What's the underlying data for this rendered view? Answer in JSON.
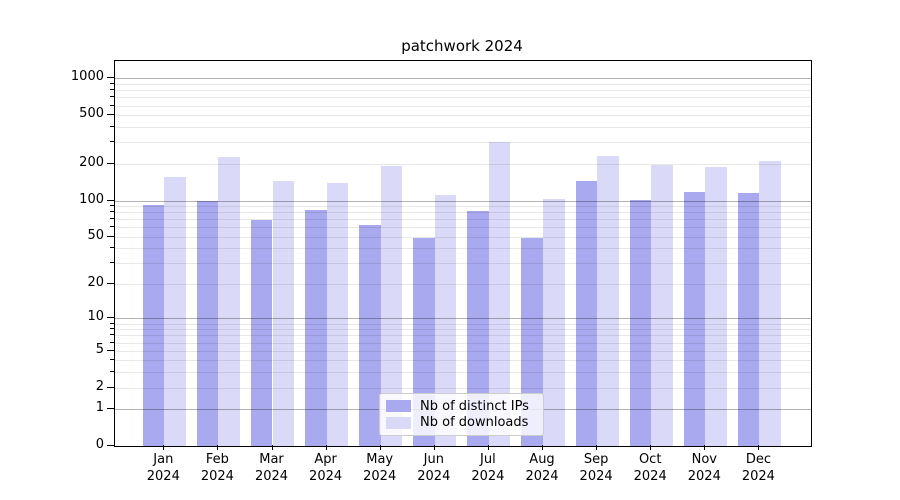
{
  "title": "patchwork 2024",
  "chart_data": {
    "type": "bar",
    "title": "patchwork 2024",
    "categories": [
      "Jan 2024",
      "Feb 2024",
      "Mar 2024",
      "Apr 2024",
      "May 2024",
      "Jun 2024",
      "Jul 2024",
      "Aug 2024",
      "Sep 2024",
      "Oct 2024",
      "Nov 2024",
      "Dec 2024"
    ],
    "series": [
      {
        "name": "Nb of distinct IPs",
        "color": "#a9a9ef",
        "values": [
          92,
          100,
          69,
          84,
          63,
          49,
          82,
          49,
          146,
          101,
          117,
          115
        ]
      },
      {
        "name": "Nb of downloads",
        "color": "#dadaf8",
        "values": [
          155,
          226,
          145,
          139,
          194,
          110,
          300,
          103,
          234,
          195,
          190,
          210
        ]
      }
    ],
    "yscale": "log1p",
    "ylim": [
      0,
      1350
    ],
    "ytick_labels": [
      0,
      1,
      2,
      5,
      10,
      20,
      50,
      100,
      200,
      500,
      1000
    ],
    "major_grid_values": [
      1,
      10,
      100,
      1000
    ],
    "minor_grid_values": [
      2,
      3,
      4,
      5,
      6,
      7,
      8,
      9,
      20,
      30,
      40,
      50,
      60,
      70,
      80,
      90,
      200,
      300,
      400,
      500,
      600,
      700,
      800,
      900
    ],
    "grid": "both",
    "legend_position": "lower center",
    "xlabel": "",
    "ylabel": ""
  },
  "colors": {
    "background": "#ffffff",
    "axis": "#000000",
    "text": "#000000",
    "major_grid": "rgba(0,0,0,0.30)",
    "minor_grid": "rgba(0,0,0,0.09)",
    "legend_border": "#cccccc",
    "legend_background": "rgba(255,255,255,0.8)"
  }
}
